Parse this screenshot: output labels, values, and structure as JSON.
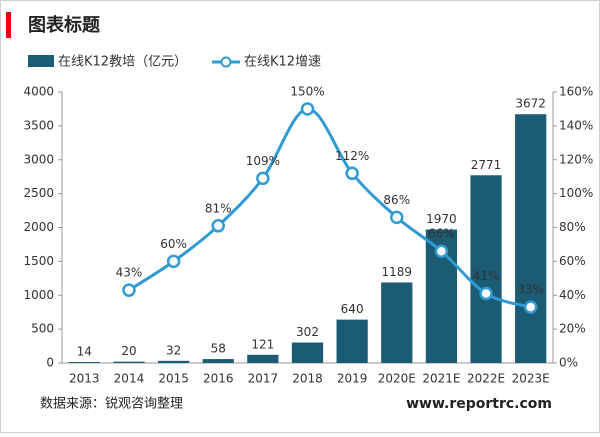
{
  "chart_data": {
    "type": "bar",
    "title": "图表标题",
    "categories": [
      "2013",
      "2014",
      "2015",
      "2016",
      "2017",
      "2018",
      "2019",
      "2020E",
      "2021E",
      "2022E",
      "2023E"
    ],
    "series": [
      {
        "name": "在线K12教培（亿元）",
        "type": "bar",
        "color": "#1b5b73",
        "values": [
          14,
          20,
          32,
          58,
          121,
          302,
          640,
          1189,
          1970,
          2771,
          3672
        ]
      },
      {
        "name": "在线K12增速",
        "type": "line",
        "axis": "y2",
        "color": "#2f9ad3",
        "values": [
          null,
          43,
          60,
          81,
          109,
          150,
          112,
          86,
          66,
          41,
          33
        ],
        "value_labels": [
          null,
          "43%",
          "60%",
          "81%",
          "109%",
          "150%",
          "112%",
          "86%",
          "66%",
          "41%",
          "33%"
        ]
      }
    ],
    "ylim": [
      0,
      4000
    ],
    "yticks": [
      0,
      500,
      1000,
      1500,
      2000,
      2500,
      3000,
      3500,
      4000
    ],
    "y2lim": [
      0,
      160
    ],
    "y2ticks": [
      {
        "value": 0,
        "label": "0%"
      },
      {
        "value": 20,
        "label": "20%"
      },
      {
        "value": 40,
        "label": "40%"
      },
      {
        "value": 60,
        "label": "60%"
      },
      {
        "value": 80,
        "label": "80%"
      },
      {
        "value": 100,
        "label": "100%"
      },
      {
        "value": 120,
        "label": "120%"
      },
      {
        "value": 140,
        "label": "140%"
      },
      {
        "value": 160,
        "label": "160%"
      }
    ],
    "grid": false,
    "legend": "top",
    "source": "数据来源：锐观咨询整理",
    "website": "www.reportrc.com"
  }
}
